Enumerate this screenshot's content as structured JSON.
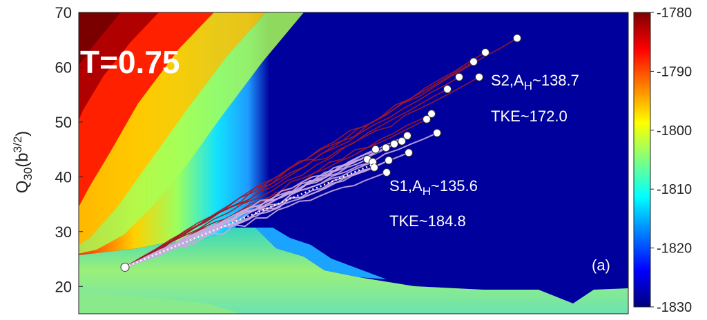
{
  "chart_data": {
    "type": "heatmap",
    "title": "",
    "xlabel": "",
    "ylabel_main": "Q",
    "ylabel_sub": "30",
    "ylabel_unit_open": "(b",
    "ylabel_unit_sup": "3/2",
    "ylabel_unit_close": ")",
    "ylim": [
      15,
      70
    ],
    "yticks": [
      20,
      30,
      40,
      50,
      60,
      70
    ],
    "colorbar": {
      "range": [
        -1830,
        -1780
      ],
      "ticks": [
        -1780,
        -1790,
        -1800,
        -1810,
        -1820,
        -1830
      ],
      "colormap": "jet",
      "colors": [
        "#00007f",
        "#0000ff",
        "#007fff",
        "#00ffff",
        "#7fff7f",
        "#ffff00",
        "#ff7f00",
        "#ff0000",
        "#7f0000"
      ]
    },
    "annotations": {
      "temperature": "T=0.75",
      "panel": "(a)",
      "s2_label": "S2,A",
      "s2_sub": "H",
      "s2_value": "~138.7",
      "s2_tke": "TKE~172.0",
      "s1_label": "S1,A",
      "s1_sub": "H",
      "s1_value": "~135.6",
      "s1_tke": "TKE~184.8"
    },
    "start_point": {
      "q30": 23.5
    },
    "series": [
      {
        "group": "S2",
        "color": "#a01a2a",
        "endpoints_q30": [
          65.3,
          62.7,
          61.0,
          58.2,
          58.2,
          56.0,
          51.5,
          50.5
        ]
      },
      {
        "group": "S1",
        "color": "#c9a8e0",
        "endpoints_q30": [
          48.0,
          47.5,
          46.5,
          46.0,
          45.3,
          45.0,
          44.4,
          43.2,
          43.0,
          42.7,
          41.7,
          40.8
        ]
      }
    ]
  }
}
